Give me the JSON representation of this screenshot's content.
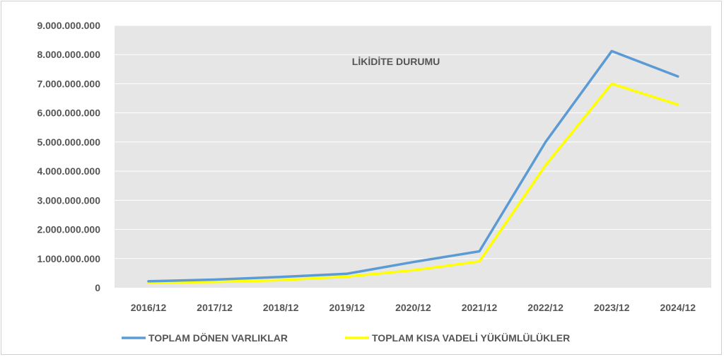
{
  "chart_data": {
    "type": "line",
    "title": "LİKİDİTE DURUMU",
    "categories": [
      "2016/12",
      "2017/12",
      "2018/12",
      "2019/12",
      "2020/12",
      "2021/12",
      "2022/12",
      "2023/12",
      "2024/12"
    ],
    "series": [
      {
        "name": "TOPLAM DÖNEN VARLIKLAR",
        "color": "#5b9bd5",
        "values": [
          220000000,
          280000000,
          370000000,
          480000000,
          880000000,
          1250000000,
          5000000000,
          8120000000,
          7250000000
        ]
      },
      {
        "name": "TOPLAM KISA VADELİ YÜKÜMLÜLÜKLER",
        "color": "#ffff00",
        "values": [
          180000000,
          200000000,
          260000000,
          380000000,
          600000000,
          900000000,
          4200000000,
          7000000000,
          6280000000
        ]
      }
    ],
    "ylim": [
      0,
      9000000000
    ],
    "yticks": [
      0,
      1000000000,
      2000000000,
      3000000000,
      4000000000,
      5000000000,
      6000000000,
      7000000000,
      8000000000,
      9000000000
    ],
    "ytick_labels": [
      "0",
      "1.000.000.000",
      "2.000.000.000",
      "3.000.000.000",
      "4.000.000.000",
      "5.000.000.000",
      "6.000.000.000",
      "7.000.000.000",
      "8.000.000.000",
      "9.000.000.000"
    ],
    "grid": true,
    "legend_position": "bottom",
    "plot_background": "#e6e6e6"
  }
}
